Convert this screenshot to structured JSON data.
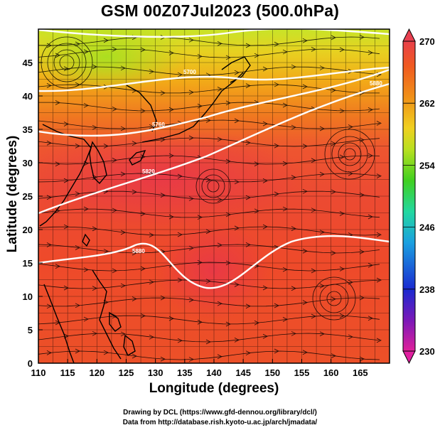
{
  "title": "GSM 00Z07Jul2023 (500.0hPa)",
  "x_axis": {
    "label": "Longitude (degrees)",
    "range": [
      110,
      170
    ],
    "ticks": [
      "110",
      "115",
      "120",
      "125",
      "130",
      "135",
      "140",
      "145",
      "150",
      "155",
      "160",
      "165"
    ]
  },
  "y_axis": {
    "label": "Latitude  (degrees)",
    "range": [
      0,
      50
    ],
    "ticks": [
      "0",
      "5",
      "10",
      "15",
      "20",
      "25",
      "30",
      "35",
      "40",
      "45"
    ]
  },
  "colorbar": {
    "ticks": [
      "270",
      "262",
      "254",
      "246",
      "238",
      "230"
    ],
    "range": [
      230,
      270
    ],
    "colors": [
      "#e0209a",
      "#7a18b8",
      "#1a2ad0",
      "#1aa0e0",
      "#22d8a0",
      "#40d020",
      "#b8e020",
      "#f0d020",
      "#f09018",
      "#f05a20",
      "#e8404a"
    ]
  },
  "contours": [
    {
      "label": "5700"
    },
    {
      "label": "5760"
    },
    {
      "label": "5820"
    },
    {
      "label": "5880"
    },
    {
      "label": "5880"
    }
  ],
  "credits": [
    "Drawing by DCL (https://www.gfd-dennou.org/library/dcl/)",
    "Data from http://database.rish.kyoto-u.ac.jp/arch/jmadata/"
  ]
}
